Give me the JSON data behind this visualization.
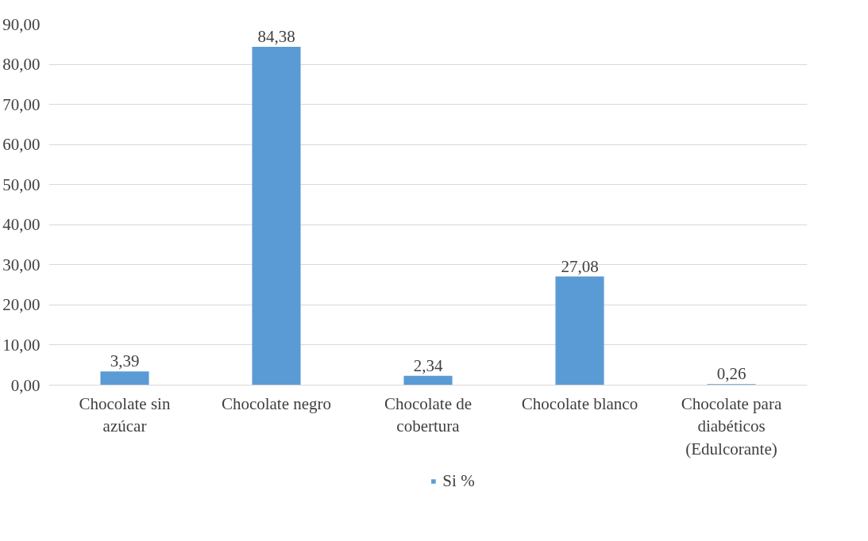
{
  "chart_data": {
    "type": "bar",
    "categories": [
      "Chocolate sin azúcar",
      "Chocolate negro",
      "Chocolate de cobertura",
      "Chocolate blanco",
      "Chocolate para diabéticos (Edulcorante)"
    ],
    "series": [
      {
        "name": "Si %",
        "color": "#5b9bd5",
        "values": [
          3.39,
          84.38,
          2.34,
          27.08,
          0.26
        ],
        "value_labels": [
          "3,39",
          "84,38",
          "2,34",
          "27,08",
          "0,26"
        ]
      }
    ],
    "ylim": [
      0,
      90
    ],
    "yticks": [
      {
        "value": 0,
        "label": "0,00"
      },
      {
        "value": 10,
        "label": "10,00"
      },
      {
        "value": 20,
        "label": "20,00"
      },
      {
        "value": 30,
        "label": "30,00"
      },
      {
        "value": 40,
        "label": "40,00"
      },
      {
        "value": 50,
        "label": "50,00"
      },
      {
        "value": 60,
        "label": "60,00"
      },
      {
        "value": 70,
        "label": "70,00"
      },
      {
        "value": 80,
        "label": "80,00"
      },
      {
        "value": 90,
        "label": "90,00"
      }
    ],
    "grid": "y",
    "legend": "bottom"
  }
}
